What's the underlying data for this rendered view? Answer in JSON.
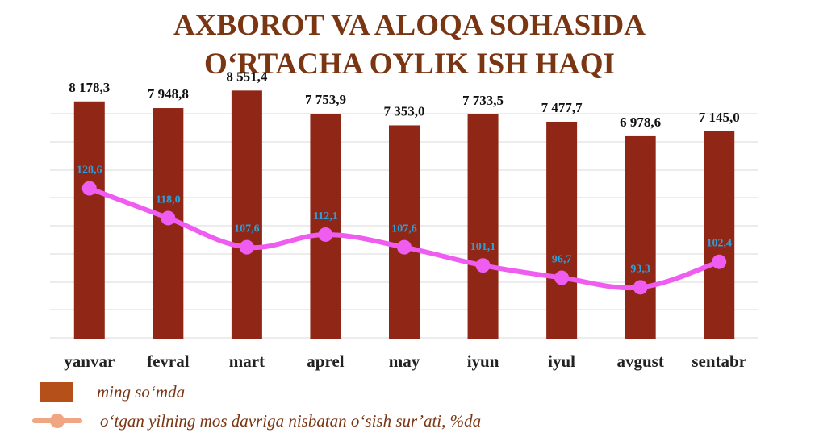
{
  "title": {
    "line1": "AXBOROT VA ALOQA SOHASIDA",
    "line2": "O‘RTACHA OYLIK ISH HAQI"
  },
  "colors": {
    "bar": "#8f2616",
    "line": "#ee5cf0",
    "line_labels": "#2d9fd9",
    "bar_labels": "#111111",
    "legend_bar": "#b5501a",
    "legend_line": "#f0a583",
    "grid": "#d9d9d9"
  },
  "chart_data": {
    "type": "bar",
    "categories": [
      "yanvar",
      "fevral",
      "mart",
      "aprel",
      "may",
      "iyun",
      "iyul",
      "avgust",
      "sentabr"
    ],
    "series": [
      {
        "name": "ming so‘mda",
        "type": "bar",
        "values": [
          8178.3,
          7948.8,
          8551.4,
          7753.9,
          7353.0,
          7733.5,
          7477.7,
          6978.6,
          7145.0
        ],
        "labels": [
          "8 178,3",
          "7 948,8",
          "8 551,4",
          "7 753,9",
          "7 353,0",
          "7 733,5",
          "7 477,7",
          "6 978,6",
          "7 145,0"
        ]
      },
      {
        "name": "o‘tgan yilning mos davriga nisbatan o‘sish sur’ati, %da",
        "type": "line",
        "values": [
          128.6,
          118.0,
          107.6,
          112.1,
          107.6,
          101.1,
          96.7,
          93.3,
          102.4
        ],
        "labels": [
          "128,6",
          "118,0",
          "107,6",
          "112,1",
          "107,6",
          "101,1",
          "96,7",
          "93,3",
          "102,4"
        ]
      }
    ],
    "bar_axis": {
      "ylim": [
        0,
        8700
      ]
    },
    "line_axis": {
      "ylim": [
        75,
        165
      ]
    },
    "grid": true,
    "legend_position": "bottom-left",
    "xlabel": "",
    "ylabel": ""
  },
  "legend": {
    "bar_label": "ming so‘mda",
    "line_label": "o‘tgan yilning mos davriga nisbatan o‘sish sur’ati, %da"
  }
}
